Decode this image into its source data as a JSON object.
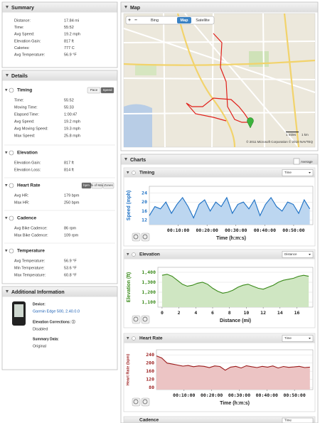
{
  "summary": {
    "title": "Summary",
    "rows": [
      [
        "Distance:",
        "17.84 mi"
      ],
      [
        "Time:",
        "55:52"
      ],
      [
        "Avg Speed:",
        "19.2 mph"
      ],
      [
        "Elevation Gain:",
        "817 ft"
      ],
      [
        "Calories:",
        "777 C"
      ],
      [
        "Avg Temperature:",
        "56.9 °F"
      ]
    ]
  },
  "details": {
    "title": "Details",
    "sections": [
      {
        "title": "Timing",
        "buttons": [
          "Pace",
          "Speed"
        ],
        "rows": [
          [
            "Time:",
            "55:52"
          ],
          [
            "Moving Time:",
            "55:33"
          ],
          [
            "Elapsed Time:",
            "1:00:47"
          ],
          [
            "Avg Speed:",
            "19.2 mph"
          ],
          [
            "Avg Moving Speed:",
            "19.3 mph"
          ],
          [
            "Max Speed:",
            "25.8 mph"
          ]
        ]
      },
      {
        "title": "Elevation",
        "rows": [
          [
            "Elevation Gain:",
            "817 ft"
          ],
          [
            "Elevation Loss:",
            "814 ft"
          ]
        ]
      },
      {
        "title": "Heart Rate",
        "buttons": [
          "bpm",
          "% of Max",
          "Zones"
        ],
        "rows": [
          [
            "Avg HR:",
            "179 bpm"
          ],
          [
            "Max HR:",
            "250 bpm"
          ]
        ]
      },
      {
        "title": "Cadence",
        "rows": [
          [
            "Avg Bike Cadence:",
            "86 rpm"
          ],
          [
            "Max Bike Cadence:",
            "109 rpm"
          ]
        ]
      },
      {
        "title": "Temperature",
        "rows": [
          [
            "Avg Temperature:",
            "56.9 °F"
          ],
          [
            "Min Temperature:",
            "53.6 °F"
          ],
          [
            "Max Temperature:",
            "60.8 °F"
          ]
        ]
      }
    ]
  },
  "additional": {
    "title": "Additional Information",
    "items": [
      [
        "Device:",
        "Garmin Edge 500, 2.40.0.0"
      ],
      [
        "Elevation Corrections: ⓘ",
        "Disabled"
      ],
      [
        "Summary Data:",
        "Original"
      ]
    ]
  },
  "map": {
    "title": "Map",
    "zoom": [
      "+",
      "−"
    ],
    "provider": "Bing",
    "views": [
      "Map",
      "Satellite"
    ],
    "scale": [
      "1 miles",
      "1 km"
    ],
    "copyright": "© 2011 Microsoft Corporation   © 2010 NAVTEQ"
  },
  "charts": {
    "title": "Charts",
    "average": "Average",
    "more": "Cadence",
    "more_selector": "Time"
  },
  "chart_data": [
    {
      "type": "line",
      "title": "Timing",
      "selector": "Time",
      "ylabel": "Speed (mph)",
      "xlabel": "Time (h:m:s)",
      "color": "#1a6fc4",
      "fill": "#bcd6f0",
      "x": [
        0,
        115,
        230,
        345,
        460,
        575,
        690,
        805,
        920,
        1035,
        1150,
        1265,
        1380,
        1495,
        1610,
        1725,
        1840,
        1955,
        2070,
        2185,
        2300,
        2415,
        2530,
        2645,
        2760,
        2875,
        2990,
        3105,
        3220,
        3335
      ],
      "values": [
        14,
        18,
        17,
        20,
        15,
        19,
        22,
        18,
        13,
        19,
        21,
        16,
        20,
        18,
        22,
        15,
        19,
        20,
        17,
        21,
        14,
        19,
        22,
        18,
        16,
        20,
        19,
        15,
        21,
        17
      ],
      "xlim": [
        0,
        3400
      ],
      "ylim": [
        10,
        27
      ],
      "yticks": [
        12,
        16,
        20,
        24
      ],
      "xticks": [
        {
          "value": 600,
          "label": "00:10:00"
        },
        {
          "value": 1200,
          "label": "00:20:00"
        },
        {
          "value": 1800,
          "label": "00:30:00"
        },
        {
          "value": 2400,
          "label": "00:40:00"
        },
        {
          "value": 3000,
          "label": "00:50:00"
        }
      ]
    },
    {
      "type": "line",
      "title": "Elevation",
      "selector": "Distance",
      "ylabel": "Elevation (ft)",
      "xlabel": "Distance (mi)",
      "color": "#3a8a1a",
      "fill": "#cfe6c2",
      "x": [
        0,
        0.6,
        1.2,
        1.8,
        2.4,
        3,
        3.6,
        4.2,
        4.8,
        5.4,
        6,
        6.6,
        7.2,
        7.8,
        8.4,
        9,
        9.6,
        10.2,
        10.8,
        11.4,
        12,
        12.6,
        13.2,
        13.8,
        14.4,
        15,
        15.6,
        16.2,
        16.8,
        17.4
      ],
      "values": [
        1370,
        1380,
        1360,
        1320,
        1280,
        1260,
        1270,
        1290,
        1300,
        1280,
        1240,
        1210,
        1190,
        1200,
        1220,
        1250,
        1270,
        1280,
        1260,
        1240,
        1230,
        1250,
        1270,
        1300,
        1320,
        1330,
        1340,
        1360,
        1370,
        1360
      ],
      "xlim": [
        -0.5,
        17.9
      ],
      "ylim": [
        1050,
        1450
      ],
      "yticks": [
        {
          "value": 1100,
          "label": "1,100"
        },
        {
          "value": 1200,
          "label": "1,200"
        },
        {
          "value": 1300,
          "label": "1,300"
        },
        {
          "value": 1400,
          "label": "1,400"
        }
      ],
      "xticks": [
        0,
        2,
        4,
        6,
        8,
        10,
        12,
        14,
        16
      ]
    },
    {
      "type": "line",
      "title": "Heart Rate",
      "selector": "Time",
      "ylabel": "Heart Rate (bpm)",
      "xlabel": "Time (h:m:s)",
      "color": "#9a1a1a",
      "fill": "#ecc4c4",
      "x": [
        0,
        115,
        230,
        345,
        460,
        575,
        690,
        805,
        920,
        1035,
        1150,
        1265,
        1380,
        1495,
        1610,
        1725,
        1840,
        1955,
        2070,
        2185,
        2300,
        2415,
        2530,
        2645,
        2760,
        2875,
        2990,
        3105,
        3220,
        3335
      ],
      "values": [
        235,
        225,
        200,
        195,
        190,
        185,
        188,
        182,
        186,
        184,
        178,
        186,
        183,
        165,
        180,
        184,
        176,
        187,
        182,
        178,
        184,
        180,
        186,
        176,
        183,
        179,
        181,
        184,
        178,
        180
      ],
      "xlim": [
        0,
        3400
      ],
      "ylim": [
        70,
        265
      ],
      "yticks": [
        80,
        120,
        160,
        200,
        240
      ],
      "xticks": [
        {
          "value": 600,
          "label": "00:10:00"
        },
        {
          "value": 1200,
          "label": "00:20:00"
        },
        {
          "value": 1800,
          "label": "00:30:00"
        },
        {
          "value": 2400,
          "label": "00:40:00"
        },
        {
          "value": 3000,
          "label": "00:50:00"
        }
      ]
    }
  ]
}
